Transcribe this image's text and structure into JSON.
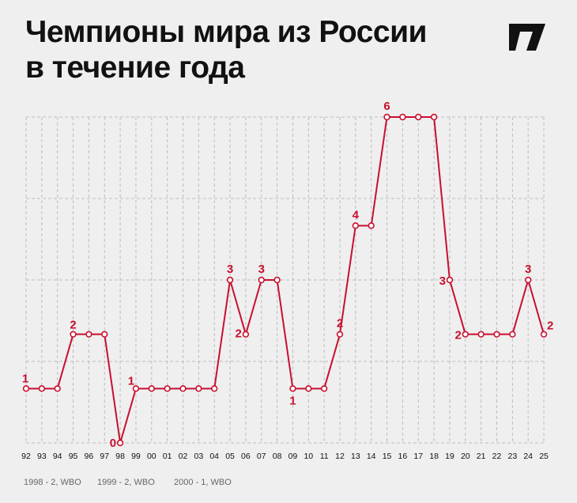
{
  "title_lines": [
    "Чемпионы мира из России",
    "в течение года"
  ],
  "colors": {
    "line": "#c8102e",
    "label": "#c8102e",
    "grid": "#bdbdbd",
    "text": "#111111",
    "background": "#efefef"
  },
  "chart_data": {
    "type": "line",
    "title": "Чемпионы мира из России в течение года",
    "xlabel": "",
    "ylabel": "",
    "categories": [
      "92",
      "93",
      "94",
      "95",
      "96",
      "97",
      "98",
      "99",
      "00",
      "01",
      "02",
      "03",
      "04",
      "05",
      "06",
      "07",
      "08",
      "09",
      "10",
      "11",
      "12",
      "13",
      "14",
      "15",
      "16",
      "17",
      "18",
      "19",
      "20",
      "21",
      "22",
      "23",
      "24",
      "25"
    ],
    "series": [
      {
        "values": [
          1,
          1,
          1,
          2,
          2,
          2,
          0,
          1,
          1,
          1,
          1,
          1,
          1,
          3,
          2,
          3,
          3,
          1,
          1,
          1,
          2,
          4,
          4,
          6,
          6,
          6,
          6,
          3,
          2,
          2,
          2,
          2,
          3,
          2
        ]
      }
    ],
    "ylim": [
      0,
      6
    ],
    "grid": true,
    "value_labels": [
      {
        "index": 0,
        "text": "1"
      },
      {
        "index": 3,
        "text": "2"
      },
      {
        "index": 6,
        "text": "0"
      },
      {
        "index": 7,
        "text": "1"
      },
      {
        "index": 13,
        "text": "3"
      },
      {
        "index": 14,
        "text": "2"
      },
      {
        "index": 15,
        "text": "3"
      },
      {
        "index": 17,
        "text": "1"
      },
      {
        "index": 20,
        "text": "2"
      },
      {
        "index": 21,
        "text": "4"
      },
      {
        "index": 23,
        "text": "6"
      },
      {
        "index": 27,
        "text": "3"
      },
      {
        "index": 28,
        "text": "2"
      },
      {
        "index": 32,
        "text": "3"
      },
      {
        "index": 33,
        "text": "2"
      }
    ]
  },
  "footnotes": [
    "1998 - 2, WBO",
    "1999 - 2, WBO",
    "2000 - 1, WBO"
  ]
}
